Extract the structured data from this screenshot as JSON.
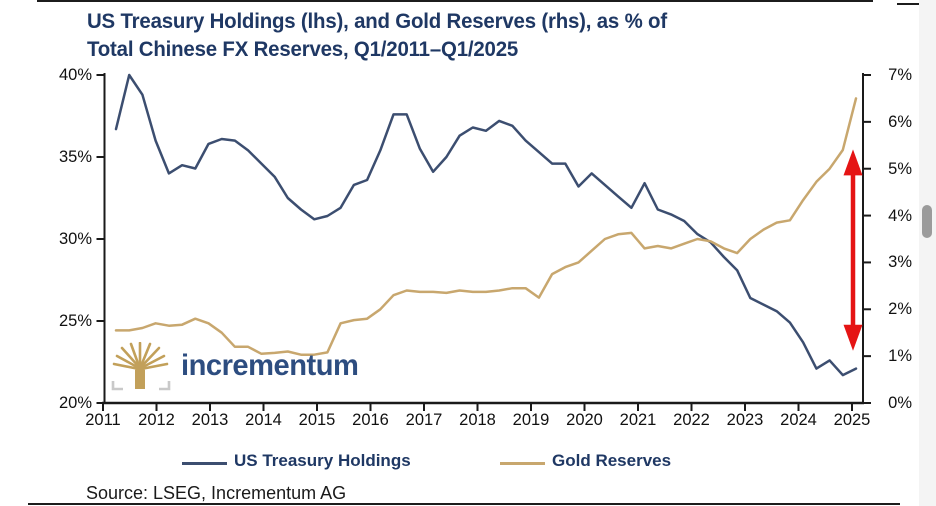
{
  "title": {
    "line1": "US Treasury Holdings (lhs), and Gold Reserves (rhs), as % of",
    "line2": "Total Chinese FX Reserves, Q1/2011–Q1/2025"
  },
  "chart_data": {
    "type": "line",
    "title": "US Treasury Holdings (lhs), and Gold Reserves (rhs), as % of Total Chinese FX Reserves, Q1/2011–Q1/2025",
    "x_frequency": "quarterly",
    "x_range": [
      "Q1/2011",
      "Q1/2025"
    ],
    "x_tick_labels": [
      "2011",
      "2012",
      "2013",
      "2014",
      "2015",
      "2016",
      "2017",
      "2018",
      "2019",
      "2020",
      "2021",
      "2022",
      "2023",
      "2024",
      "2025"
    ],
    "left_axis": {
      "range": [
        20,
        40
      ],
      "tick_values": [
        20,
        25,
        30,
        35,
        40
      ],
      "tick_labels": [
        "20%",
        "25%",
        "30%",
        "35%",
        "40%"
      ],
      "applies_to": "US Treasury Holdings"
    },
    "right_axis": {
      "range": [
        0,
        7
      ],
      "tick_values": [
        0,
        1,
        2,
        3,
        4,
        5,
        6,
        7
      ],
      "tick_labels": [
        "0%",
        "1%",
        "2%",
        "3%",
        "4%",
        "5%",
        "6%",
        "7%"
      ],
      "applies_to": "Gold Reserves"
    },
    "grid": false,
    "legend_position": "bottom",
    "series": [
      {
        "name": "US Treasury Holdings",
        "axis": "left",
        "color": "#3c4e70",
        "values": [
          36.7,
          40.0,
          38.8,
          36.0,
          34.0,
          34.5,
          34.3,
          35.8,
          36.1,
          36.0,
          35.4,
          34.6,
          33.8,
          32.5,
          31.8,
          31.2,
          31.4,
          31.9,
          33.3,
          33.6,
          35.4,
          37.6,
          37.6,
          35.5,
          34.1,
          35.0,
          36.3,
          36.8,
          36.6,
          37.2,
          36.9,
          36.0,
          35.3,
          34.6,
          34.6,
          33.2,
          34.0,
          33.3,
          32.6,
          31.9,
          33.4,
          31.8,
          31.5,
          31.1,
          30.3,
          29.8,
          28.9,
          28.1,
          26.4,
          26.0,
          25.6,
          24.9,
          23.7,
          22.1,
          22.6,
          21.7,
          22.1
        ]
      },
      {
        "name": "Gold Reserves",
        "axis": "right",
        "color": "#c8a76e",
        "values": [
          1.55,
          1.55,
          1.6,
          1.7,
          1.65,
          1.67,
          1.8,
          1.7,
          1.5,
          1.2,
          1.2,
          1.05,
          1.07,
          1.1,
          1.03,
          1.03,
          1.08,
          1.7,
          1.77,
          1.8,
          2.0,
          2.3,
          2.4,
          2.37,
          2.37,
          2.35,
          2.4,
          2.37,
          2.37,
          2.4,
          2.45,
          2.45,
          2.25,
          2.75,
          2.9,
          3.0,
          3.25,
          3.5,
          3.6,
          3.63,
          3.3,
          3.35,
          3.3,
          3.4,
          3.5,
          3.45,
          3.3,
          3.2,
          3.5,
          3.7,
          3.85,
          3.9,
          4.33,
          4.72,
          5.0,
          5.4,
          6.5
        ]
      }
    ],
    "annotation": {
      "type": "double-headed-vertical-arrow",
      "color": "#e51414",
      "near_x": "Q4/2024",
      "rhs_span": [
        1.2,
        5.2
      ],
      "meaning": "gap between Gold Reserves and US Treasury Holdings at end of period"
    }
  },
  "legend": {
    "items": [
      {
        "label": "US Treasury Holdings",
        "color": "#3c4e70"
      },
      {
        "label": "Gold Reserves",
        "color": "#c8a76e"
      }
    ]
  },
  "logo": {
    "wordmark": "incrementum",
    "tree_color": "#c2a05a",
    "bracket_color": "#c9c9c9",
    "text_color": "#2d4d80"
  },
  "source": {
    "text": "Source: LSEG, Incrementum AG"
  },
  "colors": {
    "title": "#1f3864",
    "axis": "#1a1a1a",
    "arrow_red": "#e51414",
    "background": "#ffffff"
  }
}
